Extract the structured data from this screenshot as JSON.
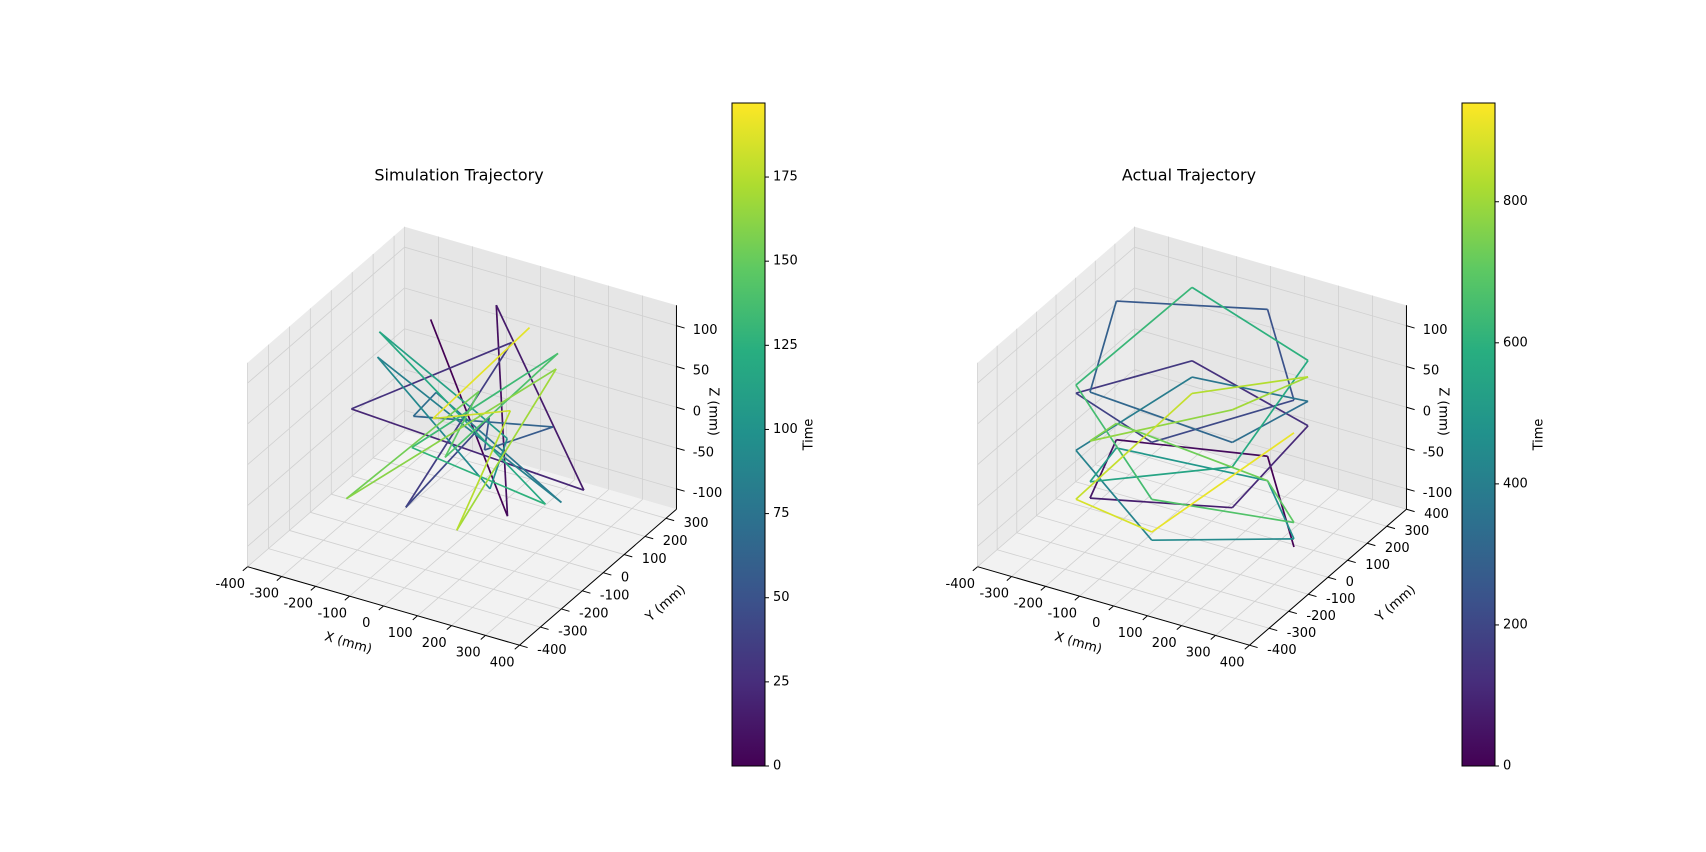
{
  "chart_data": [
    {
      "type": "line3d",
      "title": "Simulation Trajectory",
      "xlabel": "X (mm)",
      "ylabel": "Y (mm)",
      "zlabel": "Z (mm)",
      "xlim": [
        -400,
        400
      ],
      "ylim": [
        -400,
        350
      ],
      "zlim": [
        -125,
        125
      ],
      "xticks": [
        -400,
        -300,
        -200,
        -100,
        0,
        100,
        200,
        300,
        400
      ],
      "yticks": [
        -400,
        -300,
        -200,
        -100,
        0,
        100,
        200,
        300
      ],
      "zticks": [
        -100,
        -50,
        0,
        50,
        100
      ],
      "colormap": "viridis",
      "colorbar": {
        "label": "Time",
        "lim": [
          0,
          197
        ],
        "ticks": [
          0,
          25,
          50,
          75,
          100,
          125,
          150,
          175
        ]
      },
      "x": [
        -200,
        180,
        -50,
        220,
        -230,
        100,
        -150,
        200,
        -60,
        240,
        -220,
        50,
        160,
        -190,
        30,
        210,
        -120,
        -240,
        150,
        -40,
        230,
        -170,
        90,
        -220,
        120,
        0,
        250,
        -150,
        60
      ],
      "y": [
        150,
        -100,
        220,
        200,
        -180,
        50,
        -50,
        -220,
        180,
        20,
        100,
        -230,
        190,
        -120,
        60,
        -150,
        230,
        -30,
        130,
        -200,
        60,
        170,
        -90,
        -220,
        230,
        -50,
        -200,
        80,
        200
      ],
      "z": [
        80,
        -60,
        100,
        -90,
        40,
        110,
        -100,
        90,
        -70,
        30,
        -30,
        105,
        -110,
        95,
        -80,
        50,
        -40,
        100,
        -100,
        20,
        110,
        -90,
        80,
        -60,
        40,
        -110,
        100,
        -20,
        90
      ],
      "t": [
        0,
        7,
        14,
        21,
        28,
        35,
        42,
        49,
        56,
        63,
        70,
        77,
        84,
        91,
        98,
        105,
        112,
        119,
        126,
        133,
        140,
        147,
        154,
        161,
        168,
        175,
        182,
        189,
        196
      ]
    },
    {
      "type": "line3d",
      "title": "Actual Trajectory",
      "xlabel": "X (mm)",
      "ylabel": "Y (mm)",
      "zlabel": "Z (mm)",
      "xlim": [
        -400,
        400
      ],
      "ylim": [
        -400,
        400
      ],
      "zlim": [
        -125,
        125
      ],
      "xticks": [
        -400,
        -300,
        -200,
        -100,
        0,
        100,
        200,
        300,
        400
      ],
      "yticks": [
        -400,
        -300,
        -200,
        -100,
        0,
        100,
        200,
        300,
        400
      ],
      "zticks": [
        -100,
        -50,
        0,
        50,
        100
      ],
      "colormap": "viridis",
      "colorbar": {
        "label": "Time",
        "lim": [
          0,
          940
        ],
        "ticks": [
          0,
          200,
          400,
          600,
          800
        ]
      },
      "x": [
        300,
        52,
        -282,
        -150,
        230,
        230,
        -150,
        -282,
        52,
        300,
        52,
        -282,
        -150,
        230,
        230,
        -150,
        -282,
        52,
        300,
        52,
        -282,
        -150,
        230,
        230,
        -150,
        -282,
        52,
        300,
        52,
        -282,
        -150,
        230,
        230,
        -150,
        -282,
        52,
        300
      ],
      "y": [
        0,
        295,
        103,
        -260,
        -193,
        193,
        260,
        -103,
        -295,
        0,
        295,
        103,
        -260,
        -193,
        193,
        260,
        -103,
        -295,
        0,
        295,
        103,
        -260,
        -193,
        193,
        260,
        -103,
        -295,
        0,
        295,
        103,
        -260,
        -193,
        193,
        260,
        -103,
        -295,
        0
      ],
      "z": [
        -100,
        -80,
        -60,
        -40,
        -20,
        0,
        20,
        40,
        60,
        80,
        100,
        110,
        90,
        60,
        30,
        0,
        -30,
        -60,
        -90,
        -110,
        -70,
        -20,
        30,
        80,
        110,
        50,
        -10,
        -70,
        -110,
        -40,
        30,
        100,
        60,
        -20,
        -90,
        -50,
        40
      ],
      "t": [
        0,
        26,
        52,
        78,
        104,
        130,
        156,
        182,
        208,
        234,
        260,
        286,
        312,
        338,
        364,
        390,
        416,
        442,
        468,
        494,
        520,
        546,
        572,
        598,
        624,
        650,
        676,
        702,
        728,
        754,
        780,
        806,
        832,
        858,
        884,
        910,
        936
      ]
    }
  ]
}
